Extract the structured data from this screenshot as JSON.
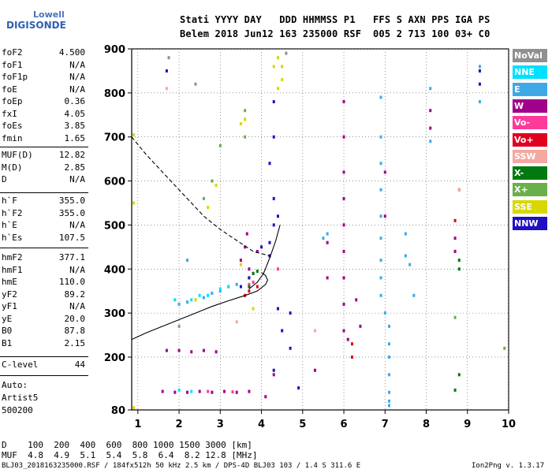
{
  "logo": {
    "line1": "Lowell",
    "line2": "DIGISONDE"
  },
  "header": {
    "line1": "Stati YYYY DAY   DDD HHMMSS P1   FFS S AXN PPS IGA PS",
    "line2": "Belem 2018 Jun12 163 235000 RSF  005 2 713 100 03+ C0"
  },
  "params_group1": [
    {
      "key": "foF2",
      "value": "4.500"
    },
    {
      "key": "foF1",
      "value": "N/A"
    },
    {
      "key": "foF1p",
      "value": "N/A"
    },
    {
      "key": "foE",
      "value": "N/A"
    },
    {
      "key": "foEp",
      "value": "0.36"
    },
    {
      "key": "fxI",
      "value": "4.05"
    },
    {
      "key": "foEs",
      "value": "3.85"
    },
    {
      "key": "fmin",
      "value": "1.65"
    }
  ],
  "params_group2": [
    {
      "key": "MUF(D)",
      "value": "12.82"
    },
    {
      "key": "M(D)",
      "value": "2.85"
    },
    {
      "key": "D",
      "value": "N/A"
    }
  ],
  "params_group3": [
    {
      "key": "h`F",
      "value": "355.0"
    },
    {
      "key": "h`F2",
      "value": "355.0"
    },
    {
      "key": "h`E",
      "value": "N/A"
    },
    {
      "key": "h`Es",
      "value": "107.5"
    }
  ],
  "params_group4": [
    {
      "key": "hmF2",
      "value": "377.1"
    },
    {
      "key": "hmF1",
      "value": "N/A"
    },
    {
      "key": "hmE",
      "value": "110.0"
    },
    {
      "key": "yF2",
      "value": "89.2"
    },
    {
      "key": "yF1",
      "value": "N/A"
    },
    {
      "key": "yE",
      "value": "20.0"
    },
    {
      "key": "B0",
      "value": "87.8"
    },
    {
      "key": "B1",
      "value": "2.15"
    }
  ],
  "params_group5": [
    {
      "key": "C-level",
      "value": "44"
    }
  ],
  "notes": {
    "auto": "Auto:",
    "artist": "Artist5",
    "version_code": "500200"
  },
  "legend": [
    {
      "label": "NoVal",
      "color": "#909090"
    },
    {
      "label": "NNE",
      "color": "#00e0ff"
    },
    {
      "label": "E",
      "color": "#3fa9e8"
    },
    {
      "label": "W",
      "color": "#a0008a"
    },
    {
      "label": "Vo-",
      "color": "#ff3a9a"
    },
    {
      "label": "Vo+",
      "color": "#e00020"
    },
    {
      "label": "SSW",
      "color": "#f4a8a0"
    },
    {
      "label": "X-",
      "color": "#007a10"
    },
    {
      "label": "X+",
      "color": "#6ab04a"
    },
    {
      "label": "SSE",
      "color": "#d8d800"
    },
    {
      "label": "NNW",
      "color": "#2010c0"
    }
  ],
  "bottom": {
    "d_row": "D    100  200  400  600  800 1000 1500 3000 [km]",
    "muf_row": "MUF  4.8  4.9  5.1  5.4  5.8  6.4  8.2 12.8 [MHz]"
  },
  "footer": {
    "left": "BLJ03_2018163235000.RSF / 184fx512h 50 kHz 2.5 km / DPS-4D BLJ03 103 / 1.4 S 311.6 E",
    "right": "Ion2Png v. 1.3.17"
  },
  "chart_data": {
    "type": "scatter",
    "title": "",
    "xlabel": "",
    "ylabel": "",
    "xlim": [
      0.85,
      10
    ],
    "ylim": [
      80,
      900
    ],
    "x_ticks": [
      1,
      2,
      3,
      4,
      5,
      6,
      7,
      8,
      9,
      10
    ],
    "y_ticks": [
      80,
      200,
      300,
      400,
      500,
      600,
      700,
      800,
      900
    ],
    "grid": true,
    "legend_position": "right",
    "series": [
      {
        "name": "W",
        "color": "#a0008a",
        "points": [
          [
            1.7,
            215
          ],
          [
            2.0,
            215
          ],
          [
            2.3,
            212
          ],
          [
            2.6,
            215
          ],
          [
            2.9,
            212
          ],
          [
            1.6,
            122
          ],
          [
            1.9,
            120
          ],
          [
            2.2,
            120
          ],
          [
            2.5,
            122
          ],
          [
            2.8,
            120
          ],
          [
            3.1,
            122
          ],
          [
            3.4,
            120
          ],
          [
            3.7,
            122
          ],
          [
            3.5,
            420
          ],
          [
            3.6,
            450
          ],
          [
            3.65,
            480
          ],
          [
            3.7,
            400
          ],
          [
            3.8,
            390
          ],
          [
            3.9,
            440
          ],
          [
            6.0,
            780
          ],
          [
            6.0,
            700
          ],
          [
            6.0,
            620
          ],
          [
            6.0,
            560
          ],
          [
            6.0,
            500
          ],
          [
            6.0,
            440
          ],
          [
            6.0,
            380
          ],
          [
            6.0,
            320
          ],
          [
            6.0,
            260
          ],
          [
            6.1,
            240
          ],
          [
            6.3,
            330
          ],
          [
            6.4,
            270
          ],
          [
            7.0,
            620
          ],
          [
            7.0,
            520
          ],
          [
            8.1,
            760
          ],
          [
            8.1,
            720
          ],
          [
            8.7,
            470
          ],
          [
            8.7,
            440
          ],
          [
            5.3,
            170
          ],
          [
            5.6,
            380
          ],
          [
            5.6,
            460
          ],
          [
            4.3,
            160
          ],
          [
            4.1,
            110
          ]
        ]
      },
      {
        "name": "E",
        "color": "#3fa9e8",
        "points": [
          [
            2.0,
            320
          ],
          [
            2.2,
            325
          ],
          [
            2.4,
            330
          ],
          [
            2.6,
            335
          ],
          [
            2.8,
            345
          ],
          [
            3.0,
            350
          ],
          [
            3.2,
            360
          ],
          [
            3.4,
            365
          ],
          [
            2.2,
            420
          ],
          [
            6.9,
            790
          ],
          [
            6.9,
            700
          ],
          [
            6.9,
            640
          ],
          [
            6.9,
            580
          ],
          [
            6.9,
            520
          ],
          [
            6.9,
            470
          ],
          [
            6.9,
            420
          ],
          [
            6.9,
            380
          ],
          [
            6.9,
            340
          ],
          [
            7.0,
            300
          ],
          [
            7.1,
            270
          ],
          [
            7.1,
            230
          ],
          [
            7.1,
            200
          ],
          [
            7.1,
            160
          ],
          [
            7.1,
            120
          ],
          [
            7.1,
            100
          ],
          [
            7.1,
            90
          ],
          [
            7.5,
            430
          ],
          [
            7.5,
            480
          ],
          [
            7.6,
            410
          ],
          [
            7.7,
            340
          ],
          [
            8.1,
            810
          ],
          [
            8.1,
            690
          ],
          [
            9.3,
            860
          ],
          [
            9.3,
            780
          ],
          [
            5.5,
            470
          ],
          [
            5.6,
            480
          ]
        ]
      },
      {
        "name": "NNE",
        "color": "#00e0ff",
        "points": [
          [
            1.9,
            330
          ],
          [
            2.3,
            330
          ],
          [
            2.5,
            340
          ],
          [
            2.7,
            340
          ],
          [
            3.0,
            355
          ],
          [
            3.2,
            360
          ],
          [
            2.0,
            125
          ],
          [
            2.3,
            122
          ]
        ]
      },
      {
        "name": "Vo-",
        "color": "#ff3a9a",
        "points": [
          [
            3.7,
            365
          ],
          [
            3.8,
            370
          ],
          [
            4.4,
            400
          ],
          [
            2.7,
            122
          ],
          [
            3.3,
            121
          ]
        ]
      },
      {
        "name": "Vo+",
        "color": "#e00020",
        "points": [
          [
            3.6,
            340
          ],
          [
            3.7,
            350
          ],
          [
            3.9,
            360
          ],
          [
            6.2,
            200
          ],
          [
            6.2,
            230
          ],
          [
            8.7,
            510
          ],
          [
            8.8,
            580
          ]
        ]
      },
      {
        "name": "SSW",
        "color": "#f4a8a0",
        "points": [
          [
            1.7,
            810
          ],
          [
            5.3,
            260
          ],
          [
            8.8,
            580
          ],
          [
            3.4,
            280
          ]
        ]
      },
      {
        "name": "X-",
        "color": "#007a10",
        "points": [
          [
            3.7,
            380
          ],
          [
            3.8,
            390
          ],
          [
            3.9,
            395
          ],
          [
            3.7,
            360
          ],
          [
            8.8,
            420
          ],
          [
            8.8,
            400
          ],
          [
            8.8,
            160
          ],
          [
            8.7,
            125
          ]
        ]
      },
      {
        "name": "X+",
        "color": "#6ab04a",
        "points": [
          [
            2.6,
            560
          ],
          [
            2.8,
            600
          ],
          [
            3.0,
            680
          ],
          [
            3.6,
            760
          ],
          [
            3.6,
            700
          ],
          [
            9.9,
            220
          ],
          [
            8.7,
            290
          ]
        ]
      },
      {
        "name": "SSE",
        "color": "#d8d800",
        "points": [
          [
            0.9,
            550
          ],
          [
            0.9,
            705
          ],
          [
            2.7,
            540
          ],
          [
            2.9,
            590
          ],
          [
            3.5,
            730
          ],
          [
            3.6,
            740
          ],
          [
            4.4,
            880
          ],
          [
            4.5,
            860
          ],
          [
            4.5,
            830
          ],
          [
            4.4,
            810
          ],
          [
            4.3,
            860
          ],
          [
            3.8,
            310
          ],
          [
            2.4,
            330
          ],
          [
            0.9,
            85
          ],
          [
            3.5,
            410
          ]
        ]
      },
      {
        "name": "NNW",
        "color": "#2010c0",
        "points": [
          [
            3.5,
            360
          ],
          [
            3.7,
            380
          ],
          [
            4.0,
            450
          ],
          [
            4.2,
            460
          ],
          [
            4.3,
            780
          ],
          [
            4.3,
            700
          ],
          [
            4.2,
            640
          ],
          [
            4.3,
            560
          ],
          [
            4.4,
            520
          ],
          [
            4.3,
            500
          ],
          [
            4.2,
            430
          ],
          [
            4.4,
            310
          ],
          [
            4.5,
            260
          ],
          [
            4.7,
            220
          ],
          [
            4.7,
            300
          ],
          [
            4.9,
            130
          ],
          [
            9.3,
            850
          ],
          [
            9.3,
            820
          ],
          [
            1.7,
            850
          ],
          [
            4.3,
            170
          ]
        ]
      },
      {
        "name": "NoVal",
        "color": "#909090",
        "points": [
          [
            1.75,
            880
          ],
          [
            4.6,
            890
          ],
          [
            2.0,
            270
          ],
          [
            2.4,
            820
          ]
        ]
      }
    ],
    "curves": [
      {
        "style": "solid",
        "points": [
          [
            0.85,
            240
          ],
          [
            1.2,
            255
          ],
          [
            1.6,
            270
          ],
          [
            2.0,
            285
          ],
          [
            2.4,
            300
          ],
          [
            2.8,
            315
          ],
          [
            3.2,
            328
          ],
          [
            3.6,
            340
          ],
          [
            3.9,
            350
          ],
          [
            4.1,
            365
          ],
          [
            4.15,
            375
          ],
          [
            4.1,
            385
          ],
          [
            4.0,
            392
          ]
        ]
      },
      {
        "style": "solid",
        "points": [
          [
            3.7,
            355
          ],
          [
            3.9,
            370
          ],
          [
            4.05,
            390
          ],
          [
            4.2,
            425
          ],
          [
            4.35,
            465
          ],
          [
            4.45,
            500
          ]
        ]
      },
      {
        "style": "dashed",
        "points": [
          [
            0.85,
            700
          ],
          [
            1.2,
            660
          ],
          [
            1.7,
            610
          ],
          [
            2.2,
            560
          ],
          [
            2.6,
            520
          ],
          [
            3.0,
            490
          ],
          [
            3.4,
            465
          ],
          [
            3.8,
            440
          ],
          [
            4.2,
            430
          ]
        ]
      }
    ]
  }
}
